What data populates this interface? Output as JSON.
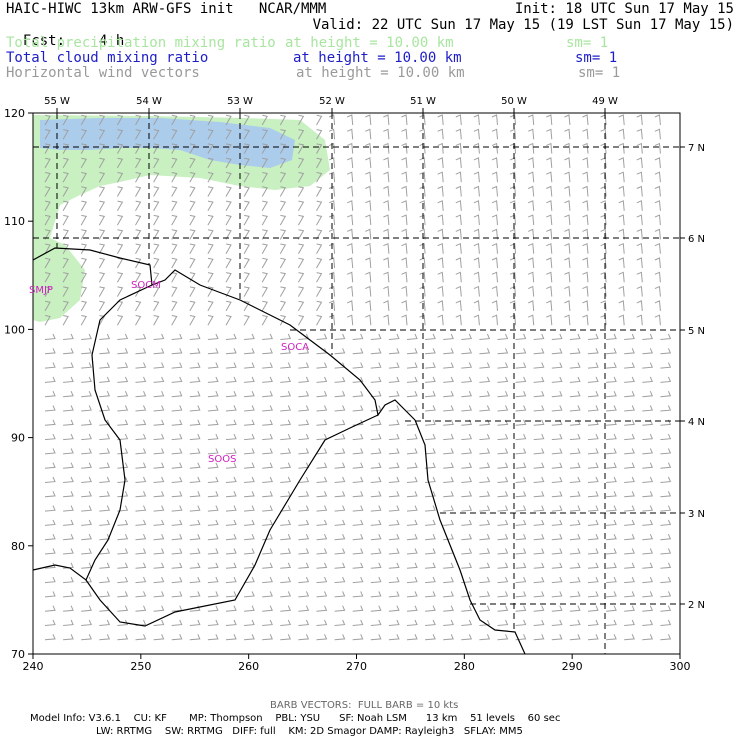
{
  "header": {
    "title": "HAIC-HIWC 13km ARW-GFS init   NCAR/MMM",
    "init": "Init: 18 UTC Sun 17 May 15",
    "fcst_label": "Fcst:",
    "fcst_value": "4 h",
    "valid": "Valid: 22 UTC Sun 17 May 15 (19 LST Sun 17 May 15)"
  },
  "fields": [
    {
      "name": "Total precipitation mixing ratio",
      "level": "at height = 10.00 km",
      "smooth": "sm= 1",
      "color": "#a8e6a0"
    },
    {
      "name": "Total cloud mixing ratio",
      "level": "at height = 10.00 km",
      "smooth": "sm= 1",
      "color": "#1e1ec8"
    },
    {
      "name": "Horizontal wind vectors",
      "level": "at height = 10.00 km",
      "smooth": "sm= 1",
      "color": "#9a9a9a"
    }
  ],
  "map": {
    "x_labels": [
      "240",
      "250",
      "260",
      "270",
      "280",
      "290",
      "300"
    ],
    "y_labels": [
      "70",
      "80",
      "90",
      "100",
      "110",
      "120"
    ],
    "lon_labels": [
      "55 W",
      "54 W",
      "53 W",
      "52 W",
      "51 W",
      "50 W",
      "49 W"
    ],
    "lat_labels": [
      "7 N",
      "6 N",
      "5 N",
      "4 N",
      "3 N",
      "2 N"
    ],
    "stations": [
      "SMJP",
      "SOCM",
      "SOCA",
      "SOOS"
    ],
    "station_color": "#d020c0",
    "barb_color": "#a0a0a0",
    "precip_color": "#c8f0c0",
    "cloud_color": "#a8c8f0"
  },
  "footer": {
    "barb_note": "BARB VECTORS:  FULL BARB = 10 kts",
    "line1": "Model Info: V3.6.1    CU: KF       MP: Thompson    PBL: YSU      SF: Noah LSM      13 km    51 levels    60 sec",
    "line2": "LW: RRTMG    SW: RRTMG   DIFF: full    KM: 2D Smagor DAMP: Rayleigh3   SFLAY: MM5"
  }
}
